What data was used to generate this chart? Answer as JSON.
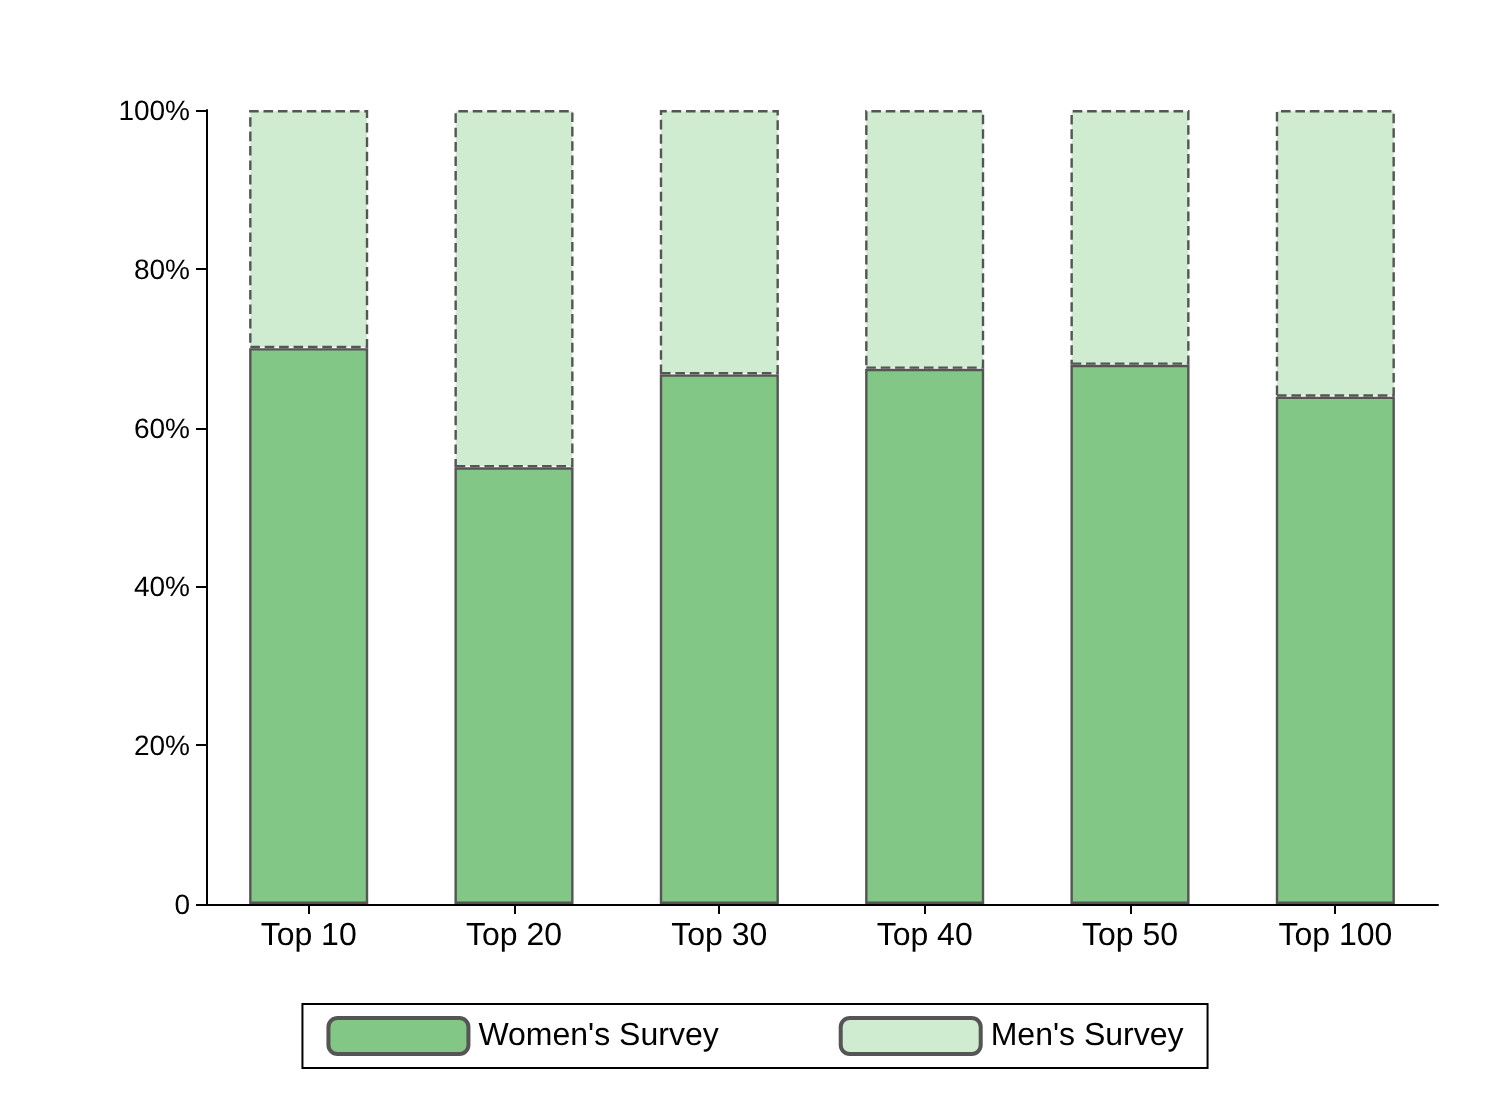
{
  "chart_data": {
    "type": "bar",
    "stacked": true,
    "categories": [
      "Top 10",
      "Top 20",
      "Top 30",
      "Top 40",
      "Top 50",
      "Top 100"
    ],
    "series": [
      {
        "name": "Women's Survey",
        "color": "#82c785",
        "line_style": "solid",
        "values": [
          70.0,
          55.0,
          66.7,
          67.4,
          67.9,
          63.9
        ]
      },
      {
        "name": "Men's Survey",
        "color": "#cfebd0",
        "line_style": "dashed",
        "values": [
          30.0,
          45.0,
          33.3,
          32.6,
          32.1,
          36.1
        ]
      }
    ],
    "ylim": [
      0,
      100
    ],
    "yticks": [
      0,
      {
        "value": 20,
        "label": "20%"
      },
      {
        "value": 40,
        "label": "40%"
      },
      {
        "value": 60,
        "label": "60%"
      },
      {
        "value": 80,
        "label": "80%"
      },
      {
        "value": 100,
        "label": "100%"
      }
    ],
    "grid": false,
    "legend": "bottom"
  }
}
